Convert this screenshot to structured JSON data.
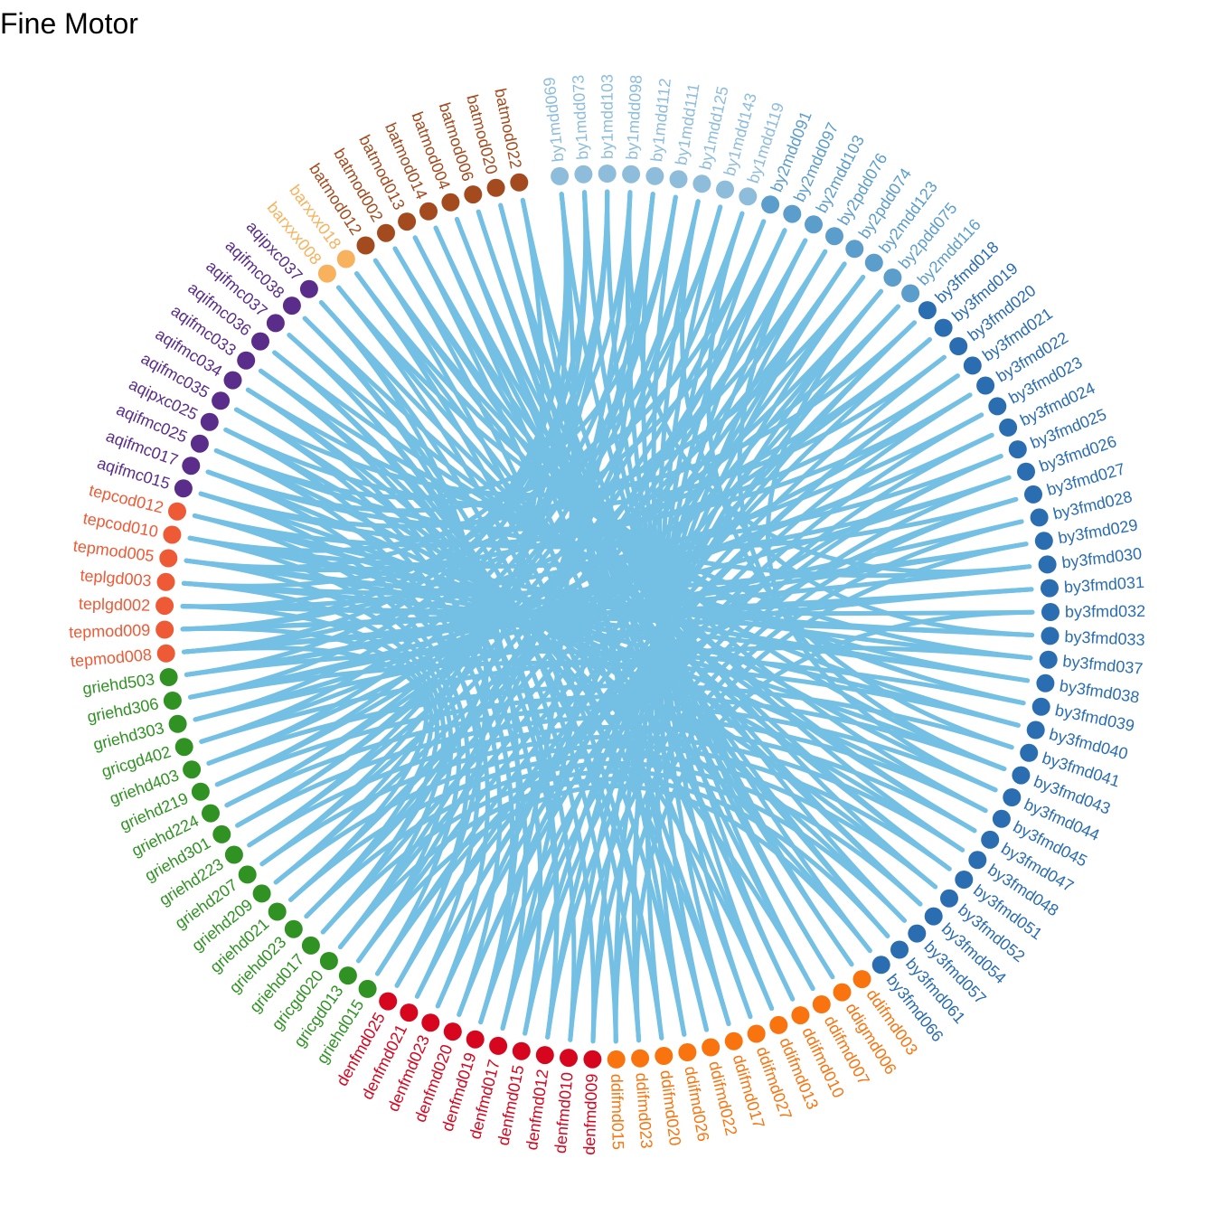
{
  "title": "Fine Motor",
  "link_color": "#74C0E4",
  "groups": [
    {
      "prefix": "by1",
      "color": "#8EBDDB"
    },
    {
      "prefix": "by2",
      "color": "#5B9DCB"
    },
    {
      "prefix": "by3",
      "color": "#2A6DB0"
    },
    {
      "prefix": "ddi",
      "color": "#F9740F"
    },
    {
      "prefix": "den",
      "color": "#D7061F"
    },
    {
      "prefix": "gri",
      "color": "#2F9223"
    },
    {
      "prefix": "tep",
      "color": "#EE5A36"
    },
    {
      "prefix": "aqi",
      "color": "#5A2D8A"
    },
    {
      "prefix": "bar",
      "color": "#F8B15C"
    },
    {
      "prefix": "bat",
      "color": "#A34B1F"
    }
  ],
  "nodes": [
    "by1mdd069",
    "by1mdd073",
    "by1mdd103",
    "by1mdd098",
    "by1mdd112",
    "by1mdd111",
    "by1mdd125",
    "by1mdd143",
    "by1mdd119",
    "by2mdd091",
    "by2mdd097",
    "by2mdd103",
    "by2pdd076",
    "by2pdd074",
    "by2mdd123",
    "by2pdd075",
    "by2mdd116",
    "by3fmd018",
    "by3fmd019",
    "by3fmd020",
    "by3fmd021",
    "by3fmd022",
    "by3fmd023",
    "by3fmd024",
    "by3fmd025",
    "by3fmd026",
    "by3fmd027",
    "by3fmd028",
    "by3fmd029",
    "by3fmd030",
    "by3fmd031",
    "by3fmd032",
    "by3fmd033",
    "by3fmd037",
    "by3fmd038",
    "by3fmd039",
    "by3fmd040",
    "by3fmd041",
    "by3fmd043",
    "by3fmd044",
    "by3fmd045",
    "by3fmd047",
    "by3fmd048",
    "by3fmd051",
    "by3fmd052",
    "by3fmd054",
    "by3fmd057",
    "by3fmd061",
    "by3fmd066",
    "ddifmd003",
    "ddigmd006",
    "ddifmd007",
    "ddifmd010",
    "ddifmd013",
    "ddifmd027",
    "ddifmd017",
    "ddifmd022",
    "ddifmd026",
    "ddifmd020",
    "ddifmd023",
    "ddifmd015",
    "denfmd009",
    "denfmd010",
    "denfmd012",
    "denfmd015",
    "denfmd017",
    "denfmd019",
    "denfmd020",
    "denfmd023",
    "denfmd021",
    "denfmd025",
    "griehd015",
    "gricgd013",
    "gricgd020",
    "griehd017",
    "griehd023",
    "griehd021",
    "griehd209",
    "griehd207",
    "griehd223",
    "griehd301",
    "griehd224",
    "griehd219",
    "griehd403",
    "gricgd402",
    "griehd303",
    "griehd306",
    "griehd503",
    "tepmod008",
    "tepmod009",
    "teplgd002",
    "teplgd003",
    "tepmod005",
    "tepcod010",
    "tepcod012",
    "aqifmc015",
    "aqifmc017",
    "aqifmc025",
    "aqipxc025",
    "aqifmc035",
    "aqifmc034",
    "aqifmc033",
    "aqifmc036",
    "aqifmc037",
    "aqifmc038",
    "aqipxc037",
    "barxxx008",
    "barxxx018",
    "batmod012",
    "batmod002",
    "batmod013",
    "batmod014",
    "batmod004",
    "batmod006",
    "batmod020",
    "batmod022"
  ],
  "links": [
    [
      "by1mdd069",
      "griehd503"
    ],
    [
      "by1mdd069",
      "tepmod009"
    ],
    [
      "by1mdd069",
      "denfmd019"
    ],
    [
      "by1mdd073",
      "tepmod008"
    ],
    [
      "by1mdd073",
      "griehd306"
    ],
    [
      "by1mdd103",
      "tepmod005"
    ],
    [
      "by1mdd103",
      "griehd303"
    ],
    [
      "by1mdd098",
      "teplgd002"
    ],
    [
      "by1mdd098",
      "by3fmd030"
    ],
    [
      "by1mdd112",
      "gricgd402"
    ],
    [
      "by1mdd112",
      "denfmd017"
    ],
    [
      "by1mdd111",
      "aqifmc025"
    ],
    [
      "by1mdd111",
      "griehd403"
    ],
    [
      "by1mdd125",
      "by3fmd033"
    ],
    [
      "by1mdd125",
      "griehd219"
    ],
    [
      "by1mdd143",
      "griehd224"
    ],
    [
      "by1mdd143",
      "tepcod010"
    ],
    [
      "by1mdd119",
      "griehd301"
    ],
    [
      "by1mdd119",
      "by3fmd041"
    ],
    [
      "by2mdd091",
      "griehd223"
    ],
    [
      "by2mdd091",
      "aqifmc017"
    ],
    [
      "by2mdd097",
      "griehd207"
    ],
    [
      "by2mdd097",
      "teplgd003"
    ],
    [
      "by2mdd103",
      "griehd209"
    ],
    [
      "by2mdd103",
      "by3fmd043"
    ],
    [
      "by2pdd076",
      "griehd021"
    ],
    [
      "by2pdd076",
      "tepmod009"
    ],
    [
      "by2pdd074",
      "griehd023"
    ],
    [
      "by2pdd074",
      "denfmd023"
    ],
    [
      "by2mdd123",
      "griehd017"
    ],
    [
      "by2mdd123",
      "aqifmc015"
    ],
    [
      "by2pdd075",
      "gricgd020"
    ],
    [
      "by2pdd075",
      "by3fmd044"
    ],
    [
      "by2mdd116",
      "gricgd013"
    ],
    [
      "by2mdd116",
      "tepmod008"
    ],
    [
      "by3fmd018",
      "griehd015"
    ],
    [
      "by3fmd018",
      "aqifmc035"
    ],
    [
      "by3fmd019",
      "denfmd025"
    ],
    [
      "by3fmd019",
      "tepmod005"
    ],
    [
      "by3fmd020",
      "denfmd021"
    ],
    [
      "by3fmd020",
      "aqipxc025"
    ],
    [
      "by3fmd021",
      "denfmd023"
    ],
    [
      "by3fmd021",
      "tepcod012"
    ],
    [
      "by3fmd022",
      "denfmd020"
    ],
    [
      "by3fmd022",
      "aqifmc017"
    ],
    [
      "by3fmd023",
      "denfmd019"
    ],
    [
      "by3fmd023",
      "teplgd002"
    ],
    [
      "by3fmd024",
      "denfmd017"
    ],
    [
      "by3fmd024",
      "griehd503"
    ],
    [
      "by3fmd025",
      "denfmd015"
    ],
    [
      "by3fmd025",
      "aqifmc015"
    ],
    [
      "by3fmd026",
      "denfmd012"
    ],
    [
      "by3fmd026",
      "tepcod010"
    ],
    [
      "by3fmd027",
      "denfmd010"
    ],
    [
      "by3fmd027",
      "aqifmc025"
    ],
    [
      "by3fmd028",
      "denfmd009"
    ],
    [
      "by3fmd028",
      "griehd306"
    ],
    [
      "by3fmd029",
      "teplgd003"
    ],
    [
      "by3fmd029",
      "ddifmd015"
    ],
    [
      "by3fmd030",
      "tepmod009"
    ],
    [
      "by3fmd030",
      "aqifmc034"
    ],
    [
      "by3fmd031",
      "tepmod008"
    ],
    [
      "by3fmd031",
      "griehd303"
    ],
    [
      "by3fmd032",
      "teplgd002"
    ],
    [
      "by3fmd032",
      "ddifmd023"
    ],
    [
      "by3fmd033",
      "tepmod005"
    ],
    [
      "by3fmd037",
      "tepcod012"
    ],
    [
      "by3fmd037",
      "gricgd402"
    ],
    [
      "by3fmd038",
      "tepcod010"
    ],
    [
      "by3fmd038",
      "aqifmc033"
    ],
    [
      "by3fmd039",
      "griehd503"
    ],
    [
      "by3fmd039",
      "batmod012"
    ],
    [
      "by3fmd040",
      "griehd306"
    ],
    [
      "by3fmd040",
      "aqifmc036"
    ],
    [
      "by3fmd041",
      "griehd403"
    ],
    [
      "by3fmd043",
      "griehd219"
    ],
    [
      "by3fmd043",
      "batmod002"
    ],
    [
      "by3fmd044",
      "griehd224"
    ],
    [
      "by3fmd044",
      "aqifmc037"
    ],
    [
      "by3fmd045",
      "griehd301"
    ],
    [
      "by3fmd045",
      "batmod013"
    ],
    [
      "by3fmd047",
      "griehd223"
    ],
    [
      "by3fmd047",
      "aqifmc038"
    ],
    [
      "by3fmd048",
      "griehd207"
    ],
    [
      "by3fmd048",
      "batmod014"
    ],
    [
      "by3fmd051",
      "griehd209"
    ],
    [
      "by3fmd051",
      "aqipxc037"
    ],
    [
      "by3fmd052",
      "griehd021"
    ],
    [
      "by3fmd052",
      "batmod004"
    ],
    [
      "by3fmd054",
      "griehd023"
    ],
    [
      "by3fmd054",
      "barxxx008"
    ],
    [
      "by3fmd057",
      "griehd017"
    ],
    [
      "by3fmd057",
      "batmod006"
    ],
    [
      "by3fmd061",
      "gricgd020"
    ],
    [
      "by3fmd061",
      "barxxx018"
    ],
    [
      "by3fmd066",
      "gricgd013"
    ],
    [
      "by3fmd066",
      "batmod020"
    ],
    [
      "ddifmd003",
      "batmod022"
    ],
    [
      "ddifmd003",
      "by1mdd069"
    ],
    [
      "ddigmd006",
      "batmod020"
    ],
    [
      "ddigmd006",
      "by1mdd073"
    ],
    [
      "ddifmd007",
      "batmod006"
    ],
    [
      "ddifmd007",
      "by1mdd103"
    ],
    [
      "ddifmd010",
      "batmod004"
    ],
    [
      "ddifmd010",
      "by1mdd098"
    ],
    [
      "ddifmd013",
      "batmod014"
    ],
    [
      "ddifmd013",
      "by1mdd112"
    ],
    [
      "ddifmd027",
      "batmod013"
    ],
    [
      "ddifmd027",
      "by1mdd111"
    ],
    [
      "ddifmd017",
      "batmod002"
    ],
    [
      "ddifmd017",
      "by1mdd125"
    ],
    [
      "ddifmd022",
      "batmod012"
    ],
    [
      "ddifmd022",
      "by1mdd143"
    ],
    [
      "ddifmd026",
      "barxxx018"
    ],
    [
      "ddifmd026",
      "by1mdd119"
    ],
    [
      "ddifmd020",
      "barxxx008"
    ],
    [
      "ddifmd020",
      "by2mdd091"
    ],
    [
      "ddifmd023",
      "aqipxc037"
    ],
    [
      "ddifmd023",
      "by2mdd097"
    ],
    [
      "ddifmd015",
      "aqifmc038"
    ],
    [
      "ddifmd015",
      "by2mdd103"
    ],
    [
      "denfmd009",
      "aqifmc037"
    ],
    [
      "denfmd009",
      "by2pdd076"
    ],
    [
      "denfmd010",
      "aqifmc036"
    ],
    [
      "denfmd010",
      "by2pdd074"
    ],
    [
      "denfmd012",
      "aqifmc033"
    ],
    [
      "denfmd012",
      "by2mdd123"
    ],
    [
      "denfmd015",
      "aqifmc034"
    ],
    [
      "denfmd015",
      "by2pdd075"
    ],
    [
      "denfmd017",
      "aqifmc035"
    ],
    [
      "denfmd017",
      "by2mdd116"
    ],
    [
      "denfmd019",
      "aqipxc025"
    ],
    [
      "denfmd020",
      "aqifmc025"
    ],
    [
      "denfmd020",
      "by3fmd018"
    ],
    [
      "denfmd021",
      "aqifmc017"
    ],
    [
      "denfmd021",
      "by3fmd021"
    ],
    [
      "denfmd023",
      "aqifmc015"
    ],
    [
      "denfmd025",
      "tepcod012"
    ],
    [
      "denfmd025",
      "by3fmd025"
    ],
    [
      "griehd015",
      "tepcod010"
    ],
    [
      "griehd015",
      "by3fmd027"
    ],
    [
      "gricgd013",
      "tepmod005"
    ],
    [
      "gricgd013",
      "by1mdd098"
    ],
    [
      "gricgd020",
      "teplgd003"
    ],
    [
      "gricgd020",
      "by1mdd112"
    ],
    [
      "griehd017",
      "teplgd002"
    ],
    [
      "griehd017",
      "batmod022"
    ],
    [
      "griehd023",
      "tepmod009"
    ],
    [
      "griehd023",
      "by1mdd125"
    ],
    [
      "griehd021",
      "tepmod008"
    ],
    [
      "griehd021",
      "by2mdd097"
    ],
    [
      "griehd209",
      "by1mdd069"
    ],
    [
      "griehd207",
      "by1mdd073"
    ],
    [
      "griehd223",
      "by1mdd103"
    ],
    [
      "griehd301",
      "by1mdd111"
    ],
    [
      "griehd224",
      "by2mdd103"
    ],
    [
      "griehd219",
      "by2pdd074"
    ],
    [
      "griehd403",
      "by2pdd075"
    ],
    [
      "gricgd402",
      "by3fmd019"
    ],
    [
      "griehd303",
      "by3fmd022"
    ],
    [
      "griehd306",
      "by3fmd024"
    ],
    [
      "griehd503",
      "by3fmd026"
    ],
    [
      "tepmod008",
      "by3fmd029"
    ],
    [
      "tepmod009",
      "by3fmd031"
    ],
    [
      "teplgd002",
      "by3fmd033"
    ],
    [
      "teplgd003",
      "by3fmd038"
    ],
    [
      "tepmod005",
      "by3fmd040"
    ],
    [
      "tepcod010",
      "by3fmd043"
    ],
    [
      "tepcod012",
      "by3fmd045"
    ],
    [
      "aqifmc015",
      "by3fmd048"
    ],
    [
      "aqifmc017",
      "by3fmd052"
    ],
    [
      "aqifmc025",
      "by3fmd057"
    ],
    [
      "aqipxc025",
      "by3fmd066"
    ],
    [
      "aqifmc035",
      "ddifmd007"
    ],
    [
      "aqifmc034",
      "ddifmd013"
    ],
    [
      "aqifmc033",
      "ddifmd017"
    ],
    [
      "aqifmc036",
      "ddifmd020"
    ],
    [
      "aqifmc037",
      "denfmd012"
    ],
    [
      "aqifmc038",
      "denfmd019"
    ],
    [
      "aqipxc037",
      "denfmd025"
    ],
    [
      "barxxx008",
      "by3fmd037"
    ],
    [
      "barxxx018",
      "by3fmd039"
    ],
    [
      "batmod012",
      "by3fmd047"
    ],
    [
      "batmod002",
      "by3fmd051"
    ],
    [
      "batmod013",
      "by3fmd054"
    ],
    [
      "batmod014",
      "by3fmd061"
    ],
    [
      "batmod004",
      "ddifmd003"
    ],
    [
      "batmod006",
      "ddifmd010"
    ],
    [
      "batmod020",
      "ddifmd022"
    ],
    [
      "batmod022",
      "ddifmd026"
    ]
  ]
}
